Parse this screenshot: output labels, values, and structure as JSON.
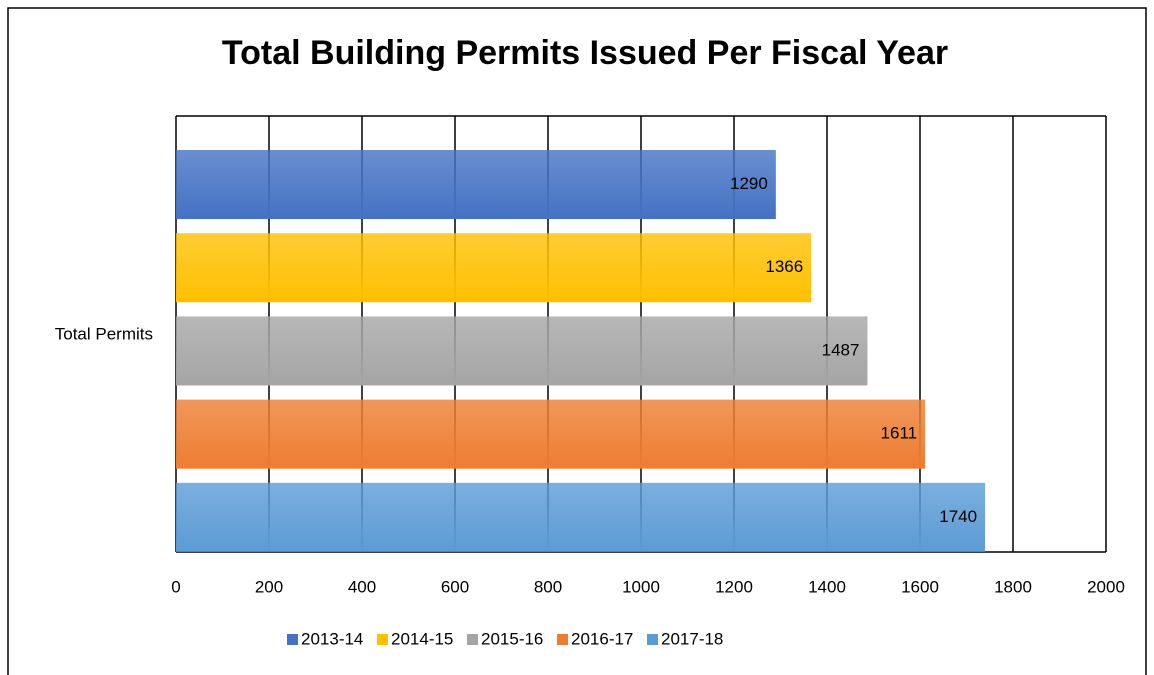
{
  "chart_data": {
    "type": "bar",
    "orientation": "horizontal",
    "title": "Total Building Permits Issued Per Fiscal Year",
    "categories": [
      "Total Permits"
    ],
    "series": [
      {
        "name": "2013-14",
        "color": "#4472c4",
        "values": [
          1290
        ]
      },
      {
        "name": "2014-15",
        "color": "#ffc000",
        "values": [
          1366
        ]
      },
      {
        "name": "2015-16",
        "color": "#a5a5a5",
        "values": [
          1487
        ]
      },
      {
        "name": "2016-17",
        "color": "#ed7d31",
        "values": [
          1611
        ]
      },
      {
        "name": "2017-18",
        "color": "#5b9bd5",
        "values": [
          1740
        ]
      }
    ],
    "xlim": [
      0,
      2000
    ],
    "xticks": [
      0,
      200,
      400,
      600,
      800,
      1000,
      1200,
      1400,
      1600,
      1800,
      2000
    ],
    "grid": true,
    "legend": "bottom"
  }
}
